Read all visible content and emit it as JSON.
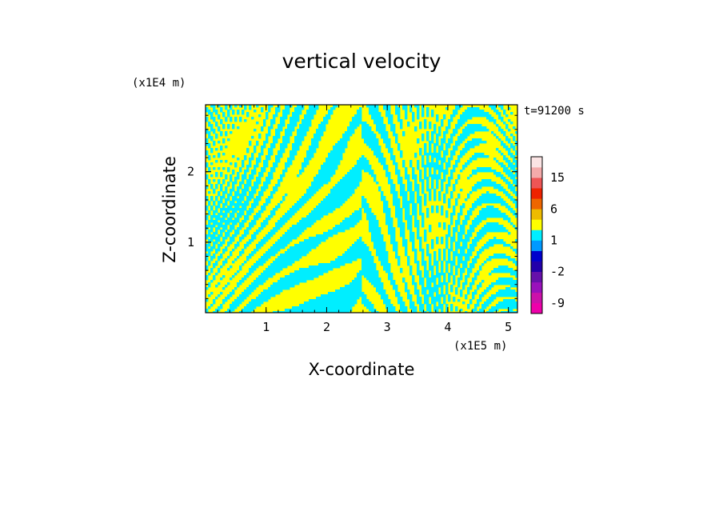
{
  "chart_data": {
    "type": "heatmap",
    "title": "vertical velocity",
    "xlabel": "X-coordinate",
    "ylabel": "Z-coordinate",
    "x_unit": "(x1E5 m)",
    "y_unit": "(x1E4 m)",
    "time_label": "t=91200 s",
    "xlim": [
      0,
      5.15
    ],
    "ylim": [
      0,
      2.95
    ],
    "x_ticks": [
      "1",
      "2",
      "3",
      "4",
      "5"
    ],
    "y_ticks": [
      "1",
      "2"
    ],
    "x_tick_values": [
      1,
      2,
      3,
      4,
      5
    ],
    "y_tick_values": [
      1,
      2
    ],
    "dominant_colors": {
      "positive": "#ffff00",
      "negative": "#00eeff"
    },
    "colorbar": {
      "levels": [
        -12,
        -9,
        -6,
        -3,
        -2,
        -1,
        0,
        1,
        2,
        3,
        6,
        9,
        12,
        15,
        18,
        21
      ],
      "colors": [
        "#ee00aa",
        "#cc11aa",
        "#9911bb",
        "#6611aa",
        "#2200aa",
        "#0000cc",
        "#0099ff",
        "#00eeff",
        "#ffff00",
        "#eebb00",
        "#ee6600",
        "#ee2200",
        "#ee5555",
        "#f4aaaa",
        "#fbe4e4"
      ],
      "tick_labels": [
        "15",
        "6",
        "1",
        "-2",
        "-9"
      ],
      "tick_values": [
        15,
        6,
        1,
        -2,
        -9
      ]
    }
  }
}
